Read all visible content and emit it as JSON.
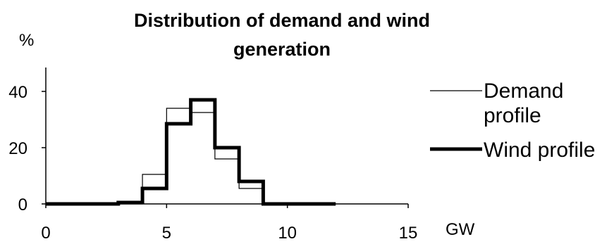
{
  "chart_data": {
    "type": "line",
    "title_lines": [
      "Distribution of demand and wind",
      "generation"
    ],
    "ylabel": "%",
    "xlabel": "GW",
    "xlim": [
      0,
      15
    ],
    "ylim": [
      0,
      40
    ],
    "x_ticks": [
      "0",
      "5",
      "10",
      "15"
    ],
    "y_ticks": [
      "0",
      "20",
      "40"
    ],
    "grid": false,
    "legend_position": "right",
    "style": "step",
    "bins": [
      0,
      1,
      2,
      3,
      4,
      5,
      6,
      7,
      8,
      9,
      10,
      11
    ],
    "series": [
      {
        "name": "Demand profile",
        "legend_lines": [
          "Demand",
          "profile"
        ],
        "line": "thin",
        "values": [
          0,
          0,
          0,
          0,
          10.5,
          34,
          32.5,
          16,
          5.5,
          0,
          0,
          0
        ]
      },
      {
        "name": "Wind profile",
        "legend_lines": [
          "Wind profile"
        ],
        "line": "thick",
        "values": [
          0,
          0,
          0,
          0.5,
          5.5,
          28.5,
          37,
          20,
          8,
          0,
          0,
          0
        ]
      }
    ]
  }
}
